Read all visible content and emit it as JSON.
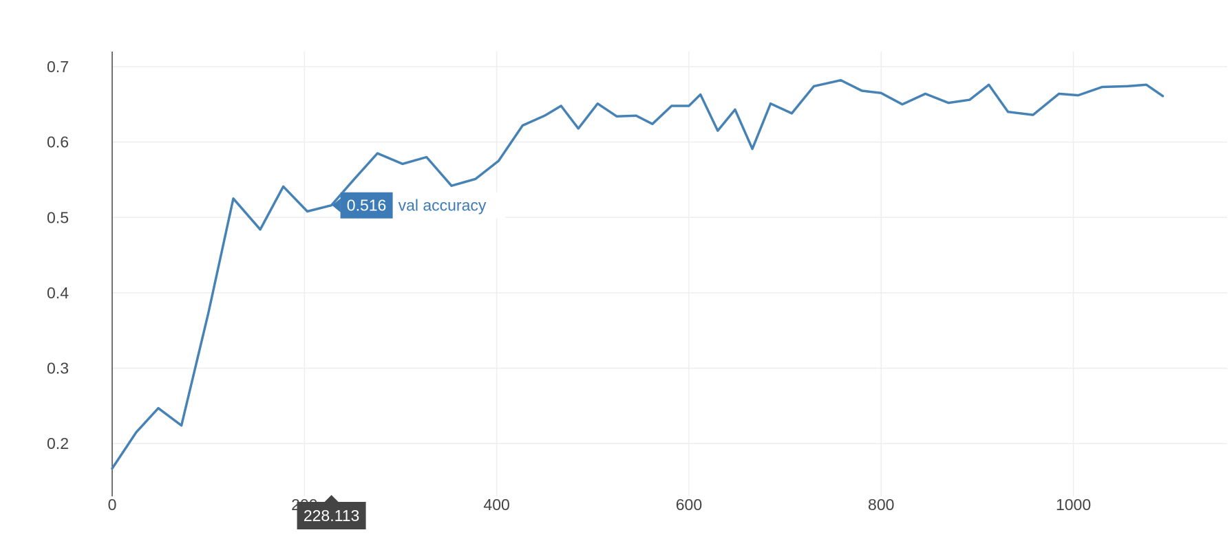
{
  "chart_data": {
    "type": "line",
    "title": "",
    "xlabel": "",
    "ylabel": "",
    "xlim": [
      0,
      1160
    ],
    "ylim": [
      0.13,
      0.72
    ],
    "x_ticks": [
      0,
      200,
      400,
      600,
      800,
      1000
    ],
    "x_tick_labels": [
      "0",
      "200",
      "400",
      "600",
      "800",
      "1000"
    ],
    "y_ticks": [
      0.2,
      0.3,
      0.4,
      0.5,
      0.6,
      0.7
    ],
    "y_tick_labels": [
      "0.2",
      "0.3",
      "0.4",
      "0.5",
      "0.6",
      "0.7"
    ],
    "grid": true,
    "legend": "none",
    "colors": {
      "line": "#4682b4",
      "grid": "#eeeeee",
      "axis": "#444444",
      "hover_x_bg": "#444444",
      "hover_y_bg": "#3d7bb6"
    },
    "series": [
      {
        "name": "val accuracy",
        "x": [
          0,
          25,
          48,
          72,
          100,
          126,
          154,
          178,
          203,
          228,
          252,
          276,
          302,
          327,
          353,
          378,
          402,
          427,
          450,
          467,
          485,
          505,
          525,
          545,
          562,
          582,
          600,
          612,
          630,
          648,
          666,
          685,
          707,
          730,
          758,
          780,
          800,
          822,
          846,
          870,
          892,
          912,
          932,
          958,
          985,
          1005,
          1030,
          1056,
          1076,
          1093
        ],
        "values": [
          0.167,
          0.215,
          0.247,
          0.224,
          0.373,
          0.525,
          0.484,
          0.541,
          0.508,
          0.516,
          0.551,
          0.585,
          0.571,
          0.58,
          0.542,
          0.551,
          0.575,
          0.622,
          0.635,
          0.648,
          0.618,
          0.651,
          0.634,
          0.635,
          0.624,
          0.648,
          0.648,
          0.663,
          0.615,
          0.643,
          0.591,
          0.651,
          0.638,
          0.674,
          0.682,
          0.668,
          0.665,
          0.65,
          0.664,
          0.652,
          0.656,
          0.676,
          0.64,
          0.636,
          0.664,
          0.662,
          0.673,
          0.674,
          0.676,
          0.661
        ]
      }
    ],
    "hover": {
      "x_value": 228.113,
      "x_label": "228.113",
      "y_value": 0.516,
      "y_label": "0.516",
      "series_name": "val accuracy"
    }
  }
}
